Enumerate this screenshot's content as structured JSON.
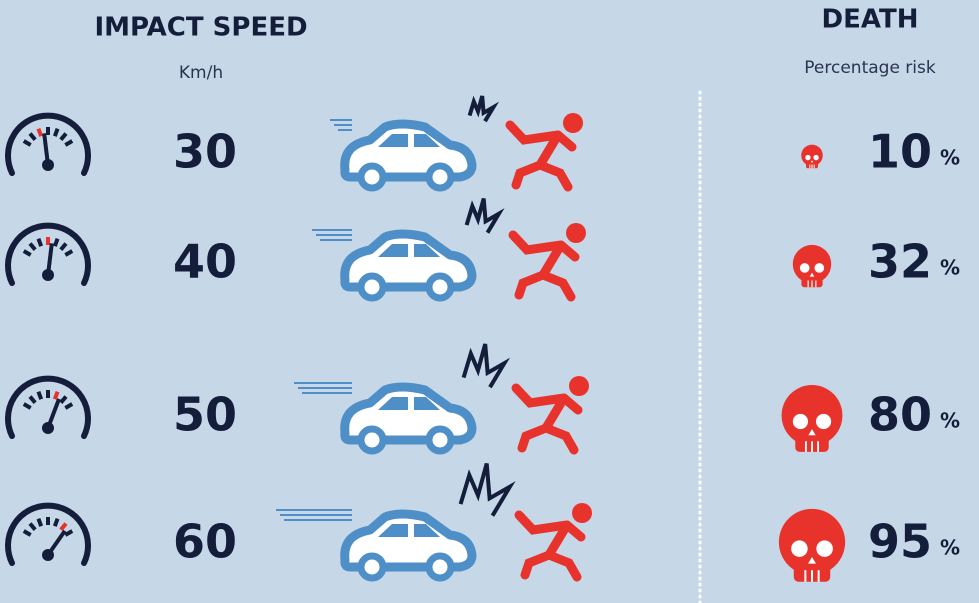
{
  "header": {
    "speed_title": "IMPACT SPEED",
    "speed_unit": "Km/h",
    "death_title": "DEATH",
    "death_subtitle": "Percentage risk"
  },
  "risk_unit": "%",
  "rows": [
    {
      "speed": 30,
      "risk": 10
    },
    {
      "speed": 40,
      "risk": 32
    },
    {
      "speed": 50,
      "risk": 80
    },
    {
      "speed": 60,
      "risk": 95
    }
  ]
}
